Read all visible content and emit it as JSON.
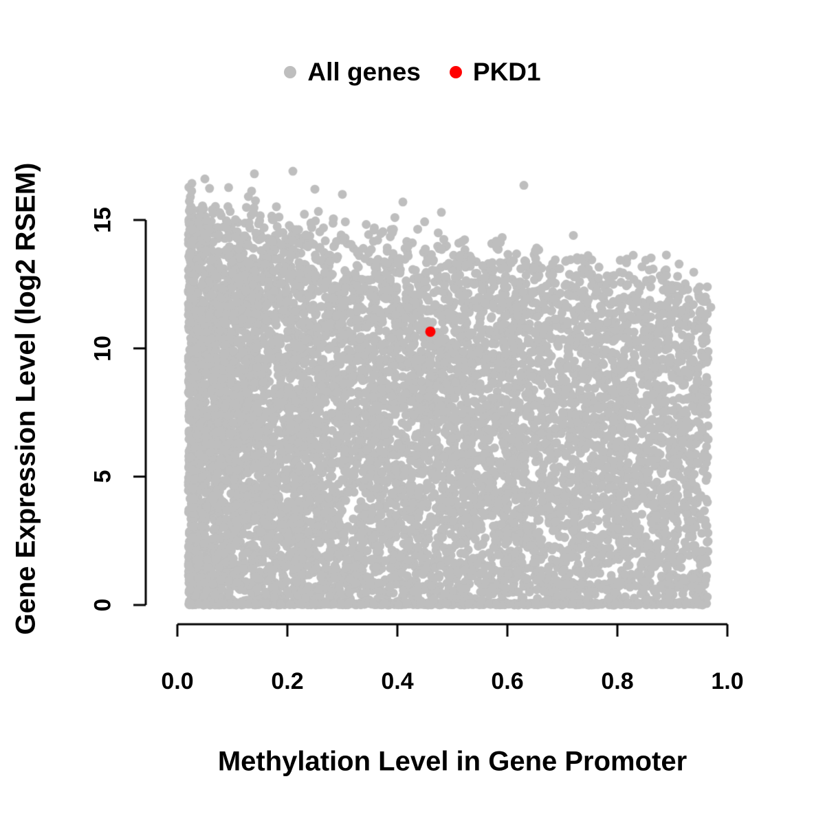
{
  "chart_data": {
    "type": "scatter",
    "xlabel": "Methylation Level in Gene Promoter",
    "ylabel": "Gene Expression Level (log2 RSEM)",
    "xlim": [
      0.0,
      1.0
    ],
    "ylim": [
      0,
      17
    ],
    "grid": false,
    "legend_position": "top-center",
    "x_tick_values": [
      0.0,
      0.2,
      0.4,
      0.6,
      0.8,
      1.0
    ],
    "x_tick_labels": [
      "0.0",
      "0.2",
      "0.4",
      "0.6",
      "0.8",
      "1.0"
    ],
    "y_tick_values": [
      0,
      5,
      10,
      15
    ],
    "y_tick_labels": [
      "0",
      "5",
      "10",
      "15"
    ],
    "legend": [
      {
        "label": "All genes",
        "color": "#bebebe",
        "marker": "circle"
      },
      {
        "label": "PKD1",
        "color": "#ff0000",
        "marker": "circle"
      }
    ],
    "series": [
      {
        "name": "All genes",
        "type": "dense-cloud",
        "color": "#bebebe",
        "n_points": 9000,
        "seed": 42,
        "x_range": [
          0.02,
          0.965
        ],
        "x_skew": 1.35,
        "envelope_y_at_x0": 14.6,
        "envelope_y_at_x1": 12.0,
        "envelope_noise": 1.4,
        "floor_fraction": 0.06,
        "n_outliers": 120,
        "outlier_max_y_at_x0": 16.9,
        "outlier_max_y_at_x1": 12.6,
        "extra_points": [
          [
            0.05,
            16.6
          ],
          [
            0.14,
            16.8
          ],
          [
            0.21,
            16.9
          ],
          [
            0.25,
            16.2
          ],
          [
            0.3,
            16.0
          ],
          [
            0.41,
            15.7
          ],
          [
            0.48,
            15.3
          ],
          [
            0.63,
            16.35
          ],
          [
            0.72,
            14.4
          ],
          [
            0.96,
            12.0
          ],
          [
            0.97,
            11.6
          ],
          [
            0.95,
            4.2
          ],
          [
            0.96,
            3.3
          ]
        ],
        "description": "Dense gray cloud; upper envelope decreases from ~14.5 (log2 RSEM) at low methylation to ~12 at high methylation; density concentrated at low methylation; solid row of points at expression 0 across all methylation levels"
      },
      {
        "name": "PKD1",
        "type": "points",
        "color": "#ff0000",
        "points": [
          [
            0.46,
            10.65
          ]
        ]
      }
    ]
  }
}
